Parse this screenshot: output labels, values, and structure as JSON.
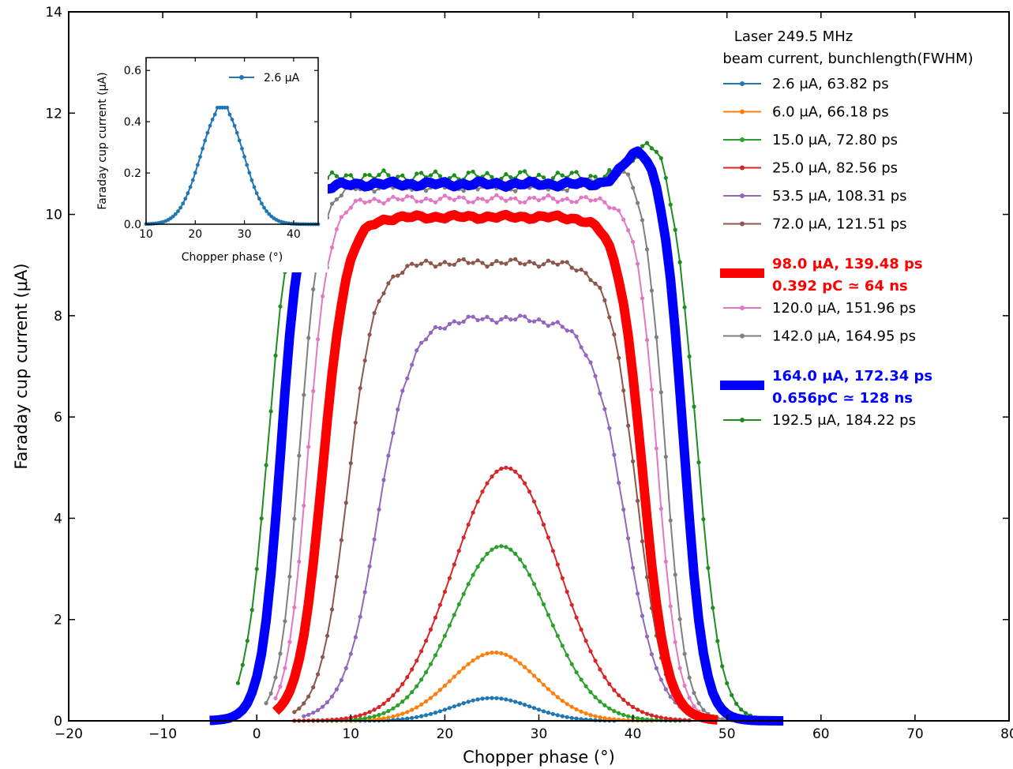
{
  "chart_data": {
    "type": "line",
    "xlabel": "Chopper phase (°)",
    "ylabel": "Faraday cup current (μA)",
    "xlim": [
      -20,
      80
    ],
    "ylim": [
      0,
      14
    ],
    "xticks": [
      -20,
      -10,
      0,
      10,
      20,
      30,
      40,
      50,
      60,
      70,
      80
    ],
    "yticks": [
      0,
      2,
      4,
      6,
      8,
      10,
      12,
      14
    ],
    "legend": {
      "title_lines": [
        "Laser 249.5 MHz",
        "beam current, bunchlength(FWHM)"
      ],
      "placement": "top-right"
    },
    "series": [
      {
        "label": "2.6 μA, 63.82 ps",
        "color": "#1f77b4",
        "width": 2,
        "markers": true,
        "shape": {
          "x1": 10,
          "x2": 38,
          "center": 25,
          "peak": 0.45,
          "type": "gauss",
          "sigma": 4.2
        },
        "points": [
          [
            5,
            0
          ],
          [
            10,
            0.01
          ],
          [
            15,
            0.05
          ],
          [
            18,
            0.15
          ],
          [
            20,
            0.27
          ],
          [
            22,
            0.39
          ],
          [
            24,
            0.45
          ],
          [
            25,
            0.45
          ],
          [
            27,
            0.43
          ],
          [
            29,
            0.37
          ],
          [
            31,
            0.26
          ],
          [
            33,
            0.15
          ],
          [
            35,
            0.07
          ],
          [
            38,
            0.02
          ],
          [
            42,
            0
          ]
        ]
      },
      {
        "label": "6.0 μA, 66.18 ps",
        "color": "#ff7f0e",
        "width": 2,
        "markers": true,
        "shape": {
          "type": "gauss",
          "center": 25.3,
          "peak": 1.35,
          "sigma": 4.6,
          "x1": 8,
          "x2": 42
        }
      },
      {
        "label": "15.0 μA, 72.80 ps",
        "color": "#2ca02c",
        "width": 2,
        "markers": true,
        "shape": {
          "type": "gauss",
          "center": 26,
          "peak": 3.45,
          "sigma": 5.0,
          "x1": 6,
          "x2": 45
        }
      },
      {
        "label": "25.0 μA, 82.56 ps",
        "color": "#d62728",
        "width": 2,
        "markers": true,
        "shape": {
          "type": "gauss",
          "center": 26.5,
          "peak": 5.0,
          "sigma": 5.6,
          "x1": 4,
          "x2": 46
        }
      },
      {
        "label": "53.5 μA, 108.31 ps",
        "color": "#9467bd",
        "width": 2,
        "markers": true,
        "shape": {
          "type": "plateau",
          "x1": 5,
          "x2": 45,
          "r1": 17,
          "r2": 35,
          "top": 7.95,
          "edge": 3.2,
          "wobble": 0.08
        }
      },
      {
        "label": "72.0 μA, 121.51 ps",
        "color": "#8c564b",
        "width": 2,
        "markers": true,
        "shape": {
          "type": "plateau",
          "x1": 4,
          "x2": 46,
          "r1": 13,
          "r2": 37,
          "top": 9.05,
          "edge": 2.6,
          "wobble": 0.08
        }
      },
      {
        "label": "98.0 μA, 139.48 ps",
        "label2": "0.392 pC ≃ 64 ns",
        "color": "#ff0000",
        "width": 12,
        "markers": false,
        "bold": true,
        "shape": {
          "type": "plateau",
          "x1": 2,
          "x2": 49,
          "r1": 10,
          "r2": 38,
          "top": 9.95,
          "edge": 2.3,
          "wobble": 0.05
        }
      },
      {
        "label": "120.0 μA, 151.96 ps",
        "color": "#e377c2",
        "width": 2,
        "markers": true,
        "shape": {
          "type": "plateau",
          "x1": 2,
          "x2": 49,
          "r1": 8,
          "r2": 40,
          "top": 10.3,
          "edge": 2.0,
          "wobble": 0.08
        }
      },
      {
        "label": "142.0 μA, 164.95 ps",
        "color": "#7f7f7f",
        "width": 2,
        "markers": true,
        "shape": {
          "type": "plateau",
          "x1": 1,
          "x2": 51,
          "r1": 7,
          "r2": 41,
          "top": 10.55,
          "edge": 1.9,
          "wobble": 0.1,
          "bump": 0.4
        }
      },
      {
        "label": "164.0 μA, 172.34 ps",
        "label2": "0.656pC ≃ 128 ns",
        "color": "#0000ff",
        "width": 12,
        "markers": false,
        "bold": true,
        "shape": {
          "type": "plateau",
          "x1": -5,
          "x2": 56,
          "r1": 5,
          "r2": 43,
          "top": 10.6,
          "edge": 1.9,
          "wobble": 0.06,
          "bump": 0.75
        }
      },
      {
        "label": "192.5 μA, 184.22 ps",
        "color": "#1e8c1e",
        "width": 2,
        "markers": true,
        "shape": {
          "type": "plateau",
          "x1": -2,
          "x2": 53,
          "r1": 4,
          "r2": 44,
          "top": 10.75,
          "edge": 2.2,
          "wobble": 0.12,
          "bump": 0.8
        }
      }
    ],
    "inset": {
      "xlabel": "Chopper phase (°)",
      "ylabel": "Faraday cup current (μA)",
      "xlim": [
        10,
        45
      ],
      "ylim": [
        0,
        0.65
      ],
      "xticks": [
        10,
        20,
        30,
        40
      ],
      "yticks": [
        0.0,
        0.2,
        0.4,
        0.6
      ],
      "ytick_labels": [
        "0.0",
        "0.2",
        "0.4",
        "0.6"
      ],
      "legend": "2.6 μA",
      "color": "#1f77b4"
    }
  }
}
